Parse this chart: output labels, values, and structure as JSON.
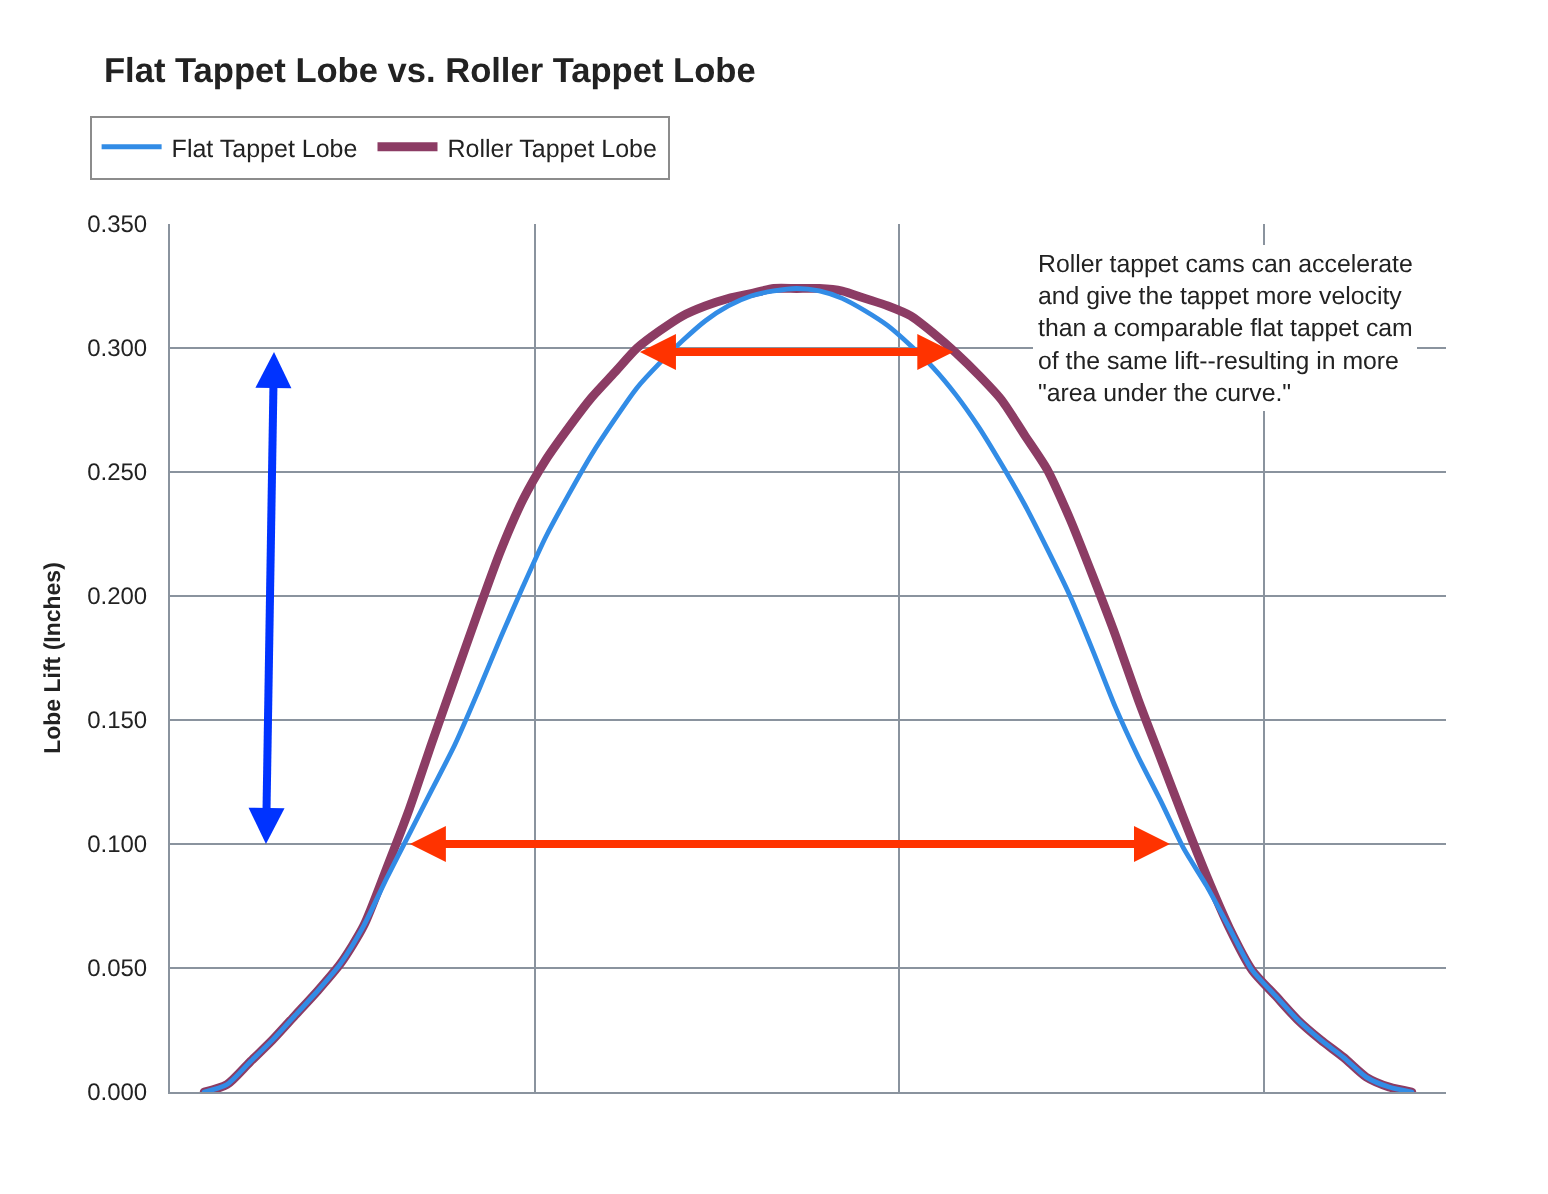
{
  "chart_data": {
    "type": "line",
    "title": "Flat Tappet Lobe vs. Roller Tappet Lobe",
    "ylabel": "Lobe Lift (Inches)",
    "categories": [
      null,
      null,
      null,
      null,
      null,
      null,
      null,
      null,
      null,
      null,
      null,
      null,
      null,
      null,
      null,
      null,
      null,
      null,
      null,
      null,
      null,
      null,
      null,
      null,
      null,
      null,
      null,
      null,
      null,
      null,
      null,
      null,
      null,
      null,
      null,
      null,
      null,
      null,
      null,
      null,
      null,
      null,
      null,
      null,
      null,
      null,
      null,
      null,
      null,
      null,
      null,
      null,
      null,
      null,
      null,
      null
    ],
    "series": [
      {
        "name": "Flat Tappet Lobe",
        "color": "#328ce6",
        "values": [
          null,
          0.0,
          0.003,
          0.012,
          0.021,
          0.031,
          0.041,
          0.052,
          0.067,
          0.086,
          0.104,
          0.122,
          0.14,
          0.161,
          0.183,
          0.204,
          0.224,
          0.241,
          0.257,
          0.271,
          0.284,
          0.294,
          0.303,
          0.311,
          0.317,
          0.321,
          0.323,
          0.324,
          0.323,
          0.32,
          0.315,
          0.309,
          0.301,
          0.292,
          0.281,
          0.268,
          0.253,
          0.237,
          0.219,
          0.2,
          0.178,
          0.155,
          0.135,
          0.117,
          0.098,
          0.083,
          0.066,
          0.049,
          0.039,
          0.029,
          0.021,
          0.014,
          0.006,
          0.002,
          0.0,
          null
        ]
      },
      {
        "name": "Roller Tappet Lobe",
        "color": "#8c3c64",
        "values": [
          null,
          0.0,
          0.003,
          0.012,
          0.021,
          0.031,
          0.041,
          0.052,
          0.067,
          0.09,
          0.114,
          0.141,
          0.167,
          0.193,
          0.218,
          0.239,
          0.255,
          0.268,
          0.28,
          0.29,
          0.3,
          0.307,
          0.313,
          0.317,
          0.32,
          0.322,
          0.324,
          0.324,
          0.324,
          0.323,
          0.32,
          0.317,
          0.313,
          0.306,
          0.298,
          0.289,
          0.279,
          0.265,
          0.251,
          0.231,
          0.208,
          0.184,
          0.158,
          0.134,
          0.11,
          0.087,
          0.066,
          0.049,
          0.039,
          0.029,
          0.021,
          0.014,
          0.006,
          0.002,
          0.0,
          null
        ]
      }
    ],
    "ylim": [
      0,
      0.35
    ],
    "yticks": [
      {
        "value": 0,
        "label": "0.000"
      },
      {
        "value": 0.05,
        "label": "0.050"
      },
      {
        "value": 0.1,
        "label": "0.100"
      },
      {
        "value": 0.15,
        "label": "0.150"
      },
      {
        "value": 0.2,
        "label": "0.200"
      },
      {
        "value": 0.25,
        "label": "0.250"
      },
      {
        "value": 0.3,
        "label": "0.300"
      },
      {
        "value": 0.35,
        "label": "0.350"
      }
    ],
    "annotations": [
      "Roller tappet cams can accelerate and give the tappet more velocity than a comparable flat tappet cam of the same lift--resulting in more \"area under the curve.\""
    ],
    "grid": true,
    "legend": "top left",
    "marker": "none",
    "line_style": "solid"
  }
}
